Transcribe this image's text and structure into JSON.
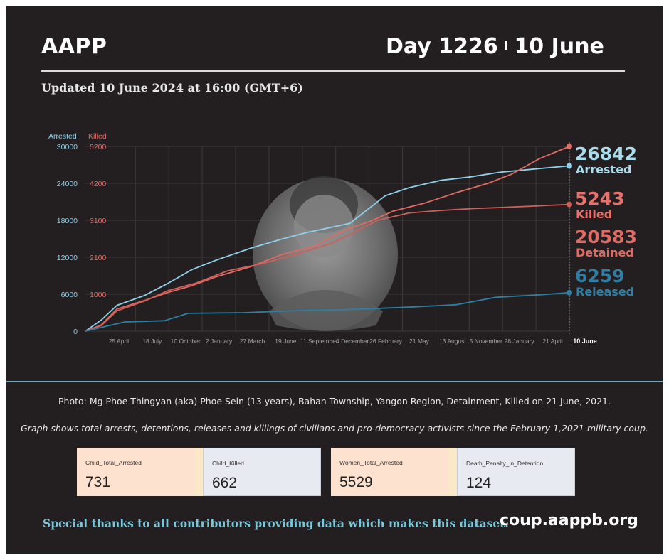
{
  "header": {
    "brand": "AAPP",
    "day_label": "Day 1226",
    "separator": "I",
    "date_label": "10 June",
    "updated": "Updated 10 June 2024 at 16:00 (GMT+6)"
  },
  "chart_data": {
    "type": "line",
    "axis_titles": {
      "left": "Arrested",
      "right": "Killed"
    },
    "left_axis": {
      "ticks": [
        "0",
        "6000",
        "12000",
        "18000",
        "24000",
        "30000"
      ],
      "values": [
        0,
        6000,
        12000,
        18000,
        24000,
        30000
      ],
      "color": "#8fd0e8"
    },
    "right_axis": {
      "ticks": [
        "1000",
        "2100",
        "3100",
        "4200",
        "5200"
      ],
      "values": [
        6000,
        12000,
        18000,
        24000,
        30000
      ],
      "color": "#e06a64"
    },
    "ylim": [
      0,
      30000
    ],
    "x_ticks": [
      "25 April",
      "18 July",
      "10 October",
      "2 January",
      "27 March",
      "19 June",
      "11 September",
      "4 December",
      "26 February",
      "21 May",
      "13 August",
      "5 November",
      "28 January",
      "21 April"
    ],
    "x_end_label": "10 June",
    "x_range_days": [
      0,
      1226
    ],
    "grid": true,
    "series": [
      {
        "name": "Arrested",
        "value_label": "26842",
        "color": "#8fd0e8",
        "label_color": "#a9ddee",
        "points": [
          [
            0,
            0
          ],
          [
            40,
            1800
          ],
          [
            80,
            4200
          ],
          [
            150,
            5800
          ],
          [
            210,
            7800
          ],
          [
            270,
            10000
          ],
          [
            330,
            11500
          ],
          [
            420,
            13500
          ],
          [
            500,
            15000
          ],
          [
            560,
            16000
          ],
          [
            670,
            17500
          ],
          [
            760,
            22000
          ],
          [
            820,
            23300
          ],
          [
            900,
            24500
          ],
          [
            970,
            25000
          ],
          [
            1050,
            25800
          ],
          [
            1150,
            26400
          ],
          [
            1226,
            26842
          ]
        ]
      },
      {
        "name": "Killed",
        "value_label": "5243",
        "color": "#e06a64",
        "label_color": "#e8716b",
        "points": [
          [
            0,
            0
          ],
          [
            40,
            1000
          ],
          [
            80,
            3600
          ],
          [
            150,
            5000
          ],
          [
            210,
            6300
          ],
          [
            270,
            7400
          ],
          [
            330,
            8800
          ],
          [
            420,
            10500
          ],
          [
            500,
            12500
          ],
          [
            580,
            13800
          ],
          [
            660,
            16500
          ],
          [
            720,
            17800
          ],
          [
            780,
            19500
          ],
          [
            860,
            20800
          ],
          [
            940,
            22500
          ],
          [
            1020,
            24000
          ],
          [
            1080,
            25500
          ],
          [
            1150,
            28000
          ],
          [
            1226,
            30000
          ]
        ]
      },
      {
        "name": "Detained",
        "value_label": "20583",
        "color": "#cf5f5a",
        "label_color": "#e06a64",
        "points": [
          [
            0,
            0
          ],
          [
            40,
            900
          ],
          [
            80,
            3300
          ],
          [
            150,
            4900
          ],
          [
            210,
            6600
          ],
          [
            280,
            7800
          ],
          [
            360,
            9800
          ],
          [
            450,
            11000
          ],
          [
            540,
            12600
          ],
          [
            620,
            14200
          ],
          [
            680,
            16000
          ],
          [
            740,
            18000
          ],
          [
            820,
            19200
          ],
          [
            900,
            19600
          ],
          [
            980,
            19900
          ],
          [
            1060,
            20100
          ],
          [
            1150,
            20350
          ],
          [
            1226,
            20583
          ]
        ]
      },
      {
        "name": "Released",
        "value_label": "6259",
        "color": "#2f7ea3",
        "label_color": "#2f7ea3",
        "points": [
          [
            0,
            0
          ],
          [
            40,
            600
          ],
          [
            100,
            1500
          ],
          [
            200,
            1700
          ],
          [
            260,
            2900
          ],
          [
            400,
            3000
          ],
          [
            520,
            3300
          ],
          [
            660,
            3500
          ],
          [
            820,
            3900
          ],
          [
            940,
            4300
          ],
          [
            1040,
            5500
          ],
          [
            1150,
            5900
          ],
          [
            1226,
            6259
          ]
        ]
      }
    ]
  },
  "notes": {
    "photo": "Photo: Mg Phoe Thingyan (aka) Phoe Sein (13 years), Bahan Township, Yangon Region, Detainment, Killed on 21 June, 2021.",
    "graph": "Graph shows total arrests, detentions, releases and killings of civilians and pro-democracy activists since the February 1,2021 military coup."
  },
  "stats": [
    {
      "label": "Child_Total_Arrested",
      "value": "731"
    },
    {
      "label": "Child_Killed",
      "value": "662"
    },
    {
      "label": "Women_Total_Arrested",
      "value": "5529"
    },
    {
      "label": "Death_Penalty_in_Detention",
      "value": "124"
    }
  ],
  "footer": {
    "thanks": "Special thanks to all contributors providing data which makes this dataset.",
    "site": "coup.aappb.org"
  }
}
